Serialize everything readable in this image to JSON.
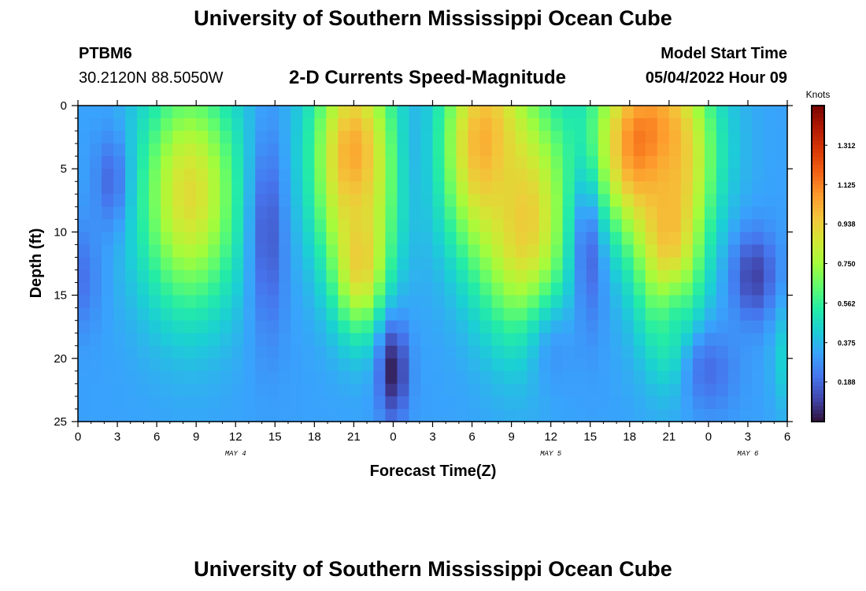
{
  "header": {
    "title": "University of Southern Mississippi Ocean Cube",
    "station": "PTBM6",
    "coords": "30.2120N  88.5050W",
    "subtitle": "2-D Currents Speed-Magnitude",
    "model_label": "Model Start Time",
    "model_time": "05/04/2022 Hour 09"
  },
  "footer": {
    "title": "University of Southern Mississippi Ocean Cube"
  },
  "chart_data": {
    "type": "heatmap",
    "title": "2-D Currents Speed-Magnitude",
    "xlabel": "Forecast Time(Z)",
    "ylabel": "Depth (ft)",
    "x_tick_labels": [
      "0",
      "3",
      "6",
      "9",
      "12",
      "15",
      "18",
      "21",
      "0",
      "3",
      "6",
      "9",
      "12",
      "15",
      "18",
      "21",
      "0",
      "3",
      "6"
    ],
    "x_range_hours": [
      0,
      54
    ],
    "date_labels": [
      {
        "text": "MAY 4",
        "hour": 12
      },
      {
        "text": "MAY 5",
        "hour": 36
      },
      {
        "text": "MAY 6",
        "hour": 51
      }
    ],
    "y_ticks": [
      0,
      5,
      10,
      15,
      20,
      25
    ],
    "ylim": [
      0,
      25
    ],
    "y_inverted": true,
    "colorbar": {
      "title": "Knots",
      "labels": [
        "1.312",
        "1.125",
        "0.938",
        "0.750",
        "0.562",
        "0.375",
        "0.188"
      ],
      "range": [
        0,
        1.5
      ],
      "colors": [
        "#30123b",
        "#4145ab",
        "#4675ed",
        "#39a2fc",
        "#1bcfd4",
        "#24eca6",
        "#61fc6c",
        "#a4fc3b",
        "#d1e834",
        "#f3c63a",
        "#fe9b2d",
        "#f36315",
        "#d93806",
        "#b11901",
        "#7a0403"
      ]
    },
    "features": [
      {
        "t": 0,
        "z": 13.5,
        "v": 0.2,
        "sx": 1.2,
        "sz": 3.0
      },
      {
        "t": 2.8,
        "z": 6,
        "v": 0.12,
        "sx": 1.0,
        "sz": 2.8
      },
      {
        "t": 8.5,
        "z": 7,
        "v": 0.9,
        "sx": 2.7,
        "sz": 6.5
      },
      {
        "t": 14.5,
        "z": 10,
        "v": 0.15,
        "sx": 1.0,
        "sz": 6.0
      },
      {
        "t": 21,
        "z": 4,
        "v": 1.05,
        "sx": 2.2,
        "sz": 6.0
      },
      {
        "t": 21.5,
        "z": 12,
        "v": 0.95,
        "sx": 1.4,
        "sz": 4.0
      },
      {
        "t": 24,
        "z": 21,
        "v": 0.03,
        "sx": 0.8,
        "sz": 2.8
      },
      {
        "t": 26.5,
        "z": 3,
        "v": 0.3,
        "sx": 1.0,
        "sz": 4.0
      },
      {
        "t": 31,
        "z": 3,
        "v": 1.05,
        "sx": 2.3,
        "sz": 6.0
      },
      {
        "t": 34,
        "z": 9,
        "v": 0.95,
        "sx": 2.4,
        "sz": 6.5
      },
      {
        "t": 36.5,
        "z": 20,
        "v": 0.3,
        "sx": 1.5,
        "sz": 3.0
      },
      {
        "t": 39,
        "z": 10,
        "v": 0.1,
        "sx": 0.9,
        "sz": 5.0
      },
      {
        "t": 43.5,
        "z": 3,
        "v": 1.22,
        "sx": 3.0,
        "sz": 5.0
      },
      {
        "t": 45,
        "z": 9,
        "v": 1.0,
        "sx": 1.8,
        "sz": 6.5
      },
      {
        "t": 45.5,
        "z": 18,
        "v": 0.55,
        "sx": 1.0,
        "sz": 2.5
      },
      {
        "t": 48,
        "z": 21,
        "v": 0.2,
        "sx": 1.5,
        "sz": 2.5
      },
      {
        "t": 51.5,
        "z": 13.5,
        "v": 0.1,
        "sx": 1.2,
        "sz": 2.5
      },
      {
        "t": 54,
        "z": 20,
        "v": 0.45,
        "sx": 0.8,
        "sz": 3.0
      }
    ],
    "background_speed": 0.32
  }
}
